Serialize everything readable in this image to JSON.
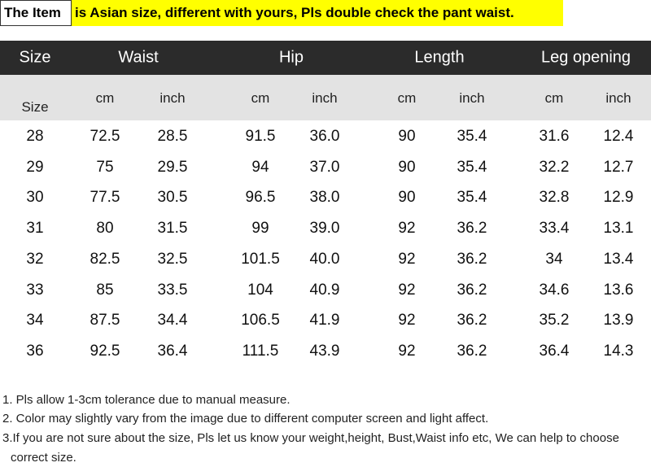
{
  "banner": {
    "label": "The Item",
    "message": "is Asian size, different with yours, Pls double check the pant waist."
  },
  "table": {
    "header": [
      "Size",
      "Waist",
      "Hip",
      "Length",
      "Leg opening"
    ],
    "subheader": [
      "Size",
      "cm",
      "inch",
      "cm",
      "inch",
      "cm",
      "inch",
      "cm",
      "inch"
    ],
    "rows": [
      [
        "28",
        "72.5",
        "28.5",
        "91.5",
        "36.0",
        "90",
        "35.4",
        "31.6",
        "12.4"
      ],
      [
        "29",
        "75",
        "29.5",
        "94",
        "37.0",
        "90",
        "35.4",
        "32.2",
        "12.7"
      ],
      [
        "30",
        "77.5",
        "30.5",
        "96.5",
        "38.0",
        "90",
        "35.4",
        "32.8",
        "12.9"
      ],
      [
        "31",
        "80",
        "31.5",
        "99",
        "39.0",
        "92",
        "36.2",
        "33.4",
        "13.1"
      ],
      [
        "32",
        "82.5",
        "32.5",
        "101.5",
        "40.0",
        "92",
        "36.2",
        "34",
        "13.4"
      ],
      [
        "33",
        "85",
        "33.5",
        "104",
        "40.9",
        "92",
        "36.2",
        "34.6",
        "13.6"
      ],
      [
        "34",
        "87.5",
        "34.4",
        "106.5",
        "41.9",
        "92",
        "36.2",
        "35.2",
        "13.9"
      ],
      [
        "36",
        "92.5",
        "36.4",
        "111.5",
        "43.9",
        "92",
        "36.2",
        "36.4",
        "14.3"
      ]
    ]
  },
  "notes": [
    "1. Pls allow 1-3cm tolerance due to manual measure.",
    "2. Color may slightly vary from the image due to different computer screen and light affect.",
    "3.If you are not sure about the size, Pls let us know your weight,height, Bust,Waist info etc, We can help to choose correct size."
  ]
}
